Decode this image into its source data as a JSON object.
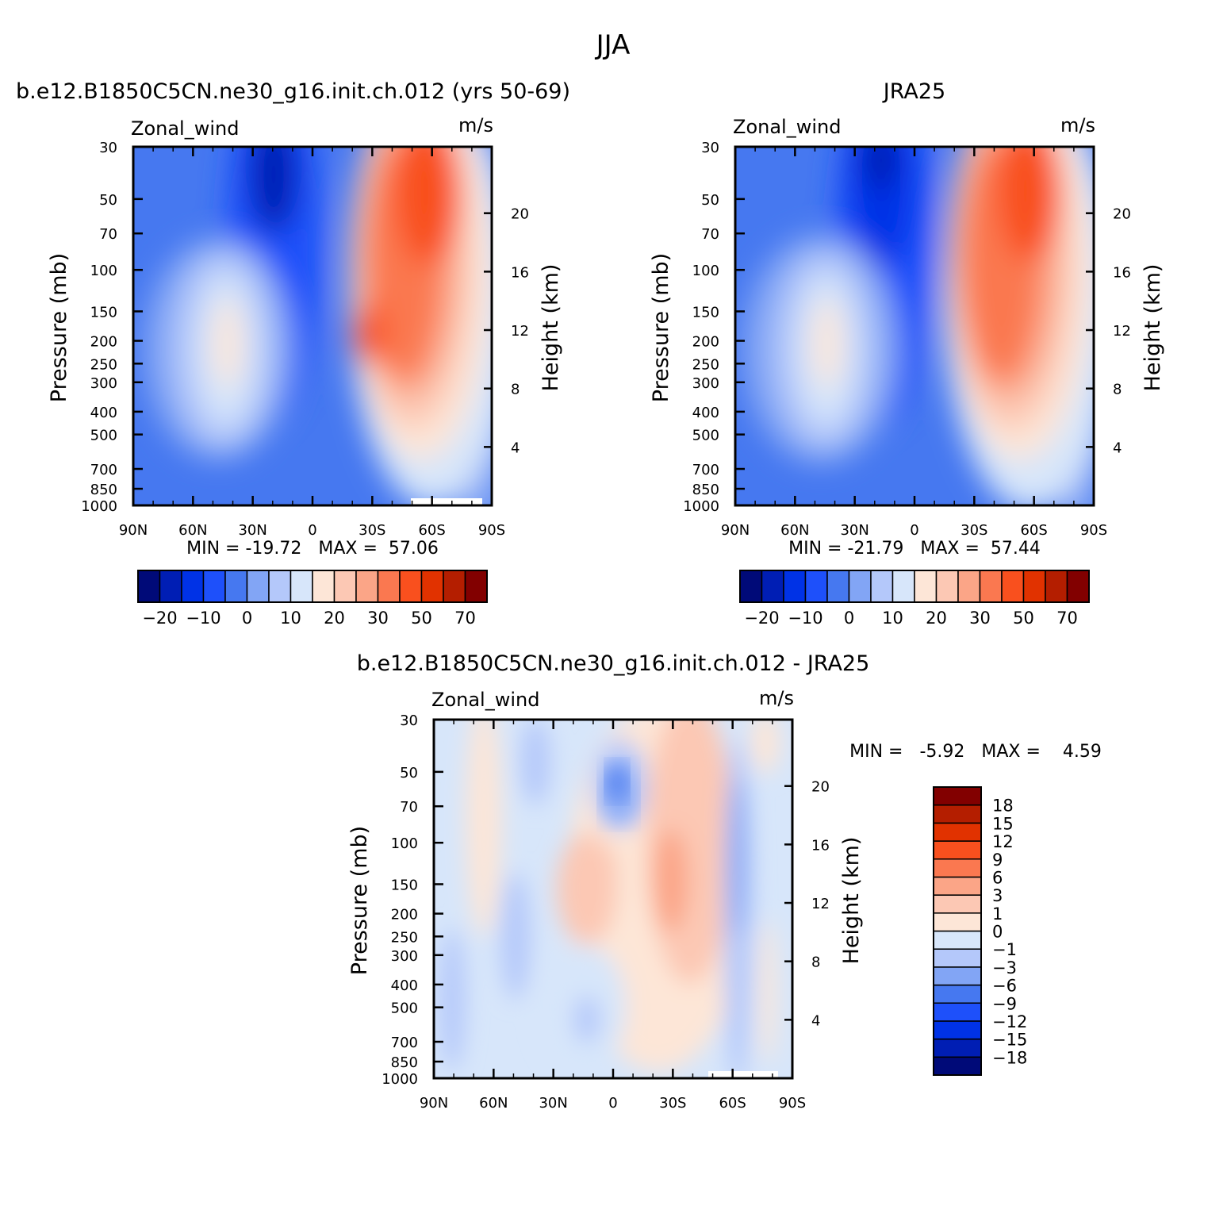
{
  "figure": {
    "title": "JJA"
  },
  "colors": {
    "frame": "#000000",
    "background": "#ffffff"
  },
  "chart_data": [
    {
      "type": "heatmap",
      "id": "model",
      "title": "b.e12.B1850C5CN.ne30_g16.init.ch.012 (yrs 50-69)",
      "left_label": "Zonal_wind",
      "right_label": "m/s",
      "ylabel": "Pressure (mb)",
      "y2label": "Height (km)",
      "x_ticks": [
        "90N",
        "60N",
        "30N",
        "0",
        "30S",
        "60S",
        "90S"
      ],
      "x_values": [
        90,
        60,
        30,
        0,
        -30,
        -60,
        -90
      ],
      "xlim": [
        90,
        -90
      ],
      "y_ticks": [
        30,
        50,
        70,
        100,
        150,
        200,
        250,
        300,
        400,
        500,
        700,
        850,
        1000
      ],
      "ylim": [
        30,
        1000
      ],
      "y_scale": "log",
      "height_ticks": [
        4,
        8,
        12,
        16,
        20
      ],
      "stats_text": "MIN = -19.72   MAX =  57.06",
      "min": -19.72,
      "max": 57.06,
      "colorbar": {
        "orientation": "horizontal",
        "colors": [
          "#000a78",
          "#001eb4",
          "#0032e6",
          "#1e50fa",
          "#4678f0",
          "#82a5f5",
          "#b4c8fa",
          "#d7e6fa",
          "#fde6d7",
          "#fcc8b4",
          "#fba587",
          "#fa7850",
          "#f9501e",
          "#e13200",
          "#b41e00",
          "#820000"
        ],
        "labels": [
          "-20",
          "-10",
          "0",
          "10",
          "20",
          "30",
          "50",
          "70"
        ]
      }
    },
    {
      "type": "heatmap",
      "id": "obs",
      "title": "JRA25",
      "left_label": "Zonal_wind",
      "right_label": "m/s",
      "ylabel": "Pressure (mb)",
      "y2label": "Height (km)",
      "x_ticks": [
        "90N",
        "60N",
        "30N",
        "0",
        "30S",
        "60S",
        "90S"
      ],
      "x_values": [
        90,
        60,
        30,
        0,
        -30,
        -60,
        -90
      ],
      "xlim": [
        90,
        -90
      ],
      "y_ticks": [
        30,
        50,
        70,
        100,
        150,
        200,
        250,
        300,
        400,
        500,
        700,
        850,
        1000
      ],
      "ylim": [
        30,
        1000
      ],
      "y_scale": "log",
      "height_ticks": [
        4,
        8,
        12,
        16,
        20
      ],
      "stats_text": "MIN = -21.79   MAX =  57.44",
      "min": -21.79,
      "max": 57.44,
      "colorbar": {
        "orientation": "horizontal",
        "colors": [
          "#000a78",
          "#001eb4",
          "#0032e6",
          "#1e50fa",
          "#4678f0",
          "#82a5f5",
          "#b4c8fa",
          "#d7e6fa",
          "#fde6d7",
          "#fcc8b4",
          "#fba587",
          "#fa7850",
          "#f9501e",
          "#e13200",
          "#b41e00",
          "#820000"
        ],
        "labels": [
          "-20",
          "-10",
          "0",
          "10",
          "20",
          "30",
          "50",
          "70"
        ]
      }
    },
    {
      "type": "heatmap",
      "id": "diff",
      "title": "b.e12.B1850C5CN.ne30_g16.init.ch.012 - JRA25",
      "left_label": "Zonal_wind",
      "right_label": "m/s",
      "ylabel": "Pressure (mb)",
      "y2label": "Height (km)",
      "x_ticks": [
        "90N",
        "60N",
        "30N",
        "0",
        "30S",
        "60S",
        "90S"
      ],
      "x_values": [
        90,
        60,
        30,
        0,
        -30,
        -60,
        -90
      ],
      "xlim": [
        90,
        -90
      ],
      "y_ticks": [
        30,
        50,
        70,
        100,
        150,
        200,
        250,
        300,
        400,
        500,
        700,
        850,
        1000
      ],
      "ylim": [
        30,
        1000
      ],
      "y_scale": "log",
      "height_ticks": [
        4,
        8,
        12,
        16,
        20
      ],
      "stats_text": "MIN =   -5.92   MAX =    4.59",
      "min": -5.92,
      "max": 4.59,
      "colorbar": {
        "orientation": "vertical",
        "colors": [
          "#000a78",
          "#001eb4",
          "#0032e6",
          "#1e50fa",
          "#4678f0",
          "#82a5f5",
          "#b4c8fa",
          "#d7e6fa",
          "#fde6d7",
          "#fcc8b4",
          "#fba587",
          "#fa7850",
          "#f9501e",
          "#e13200",
          "#b41e00",
          "#820000"
        ],
        "labels": [
          "-18",
          "-15",
          "-12",
          "-9",
          "-6",
          "-3",
          "-1",
          "0",
          "1",
          "3",
          "6",
          "9",
          "12",
          "15",
          "18"
        ]
      }
    }
  ]
}
